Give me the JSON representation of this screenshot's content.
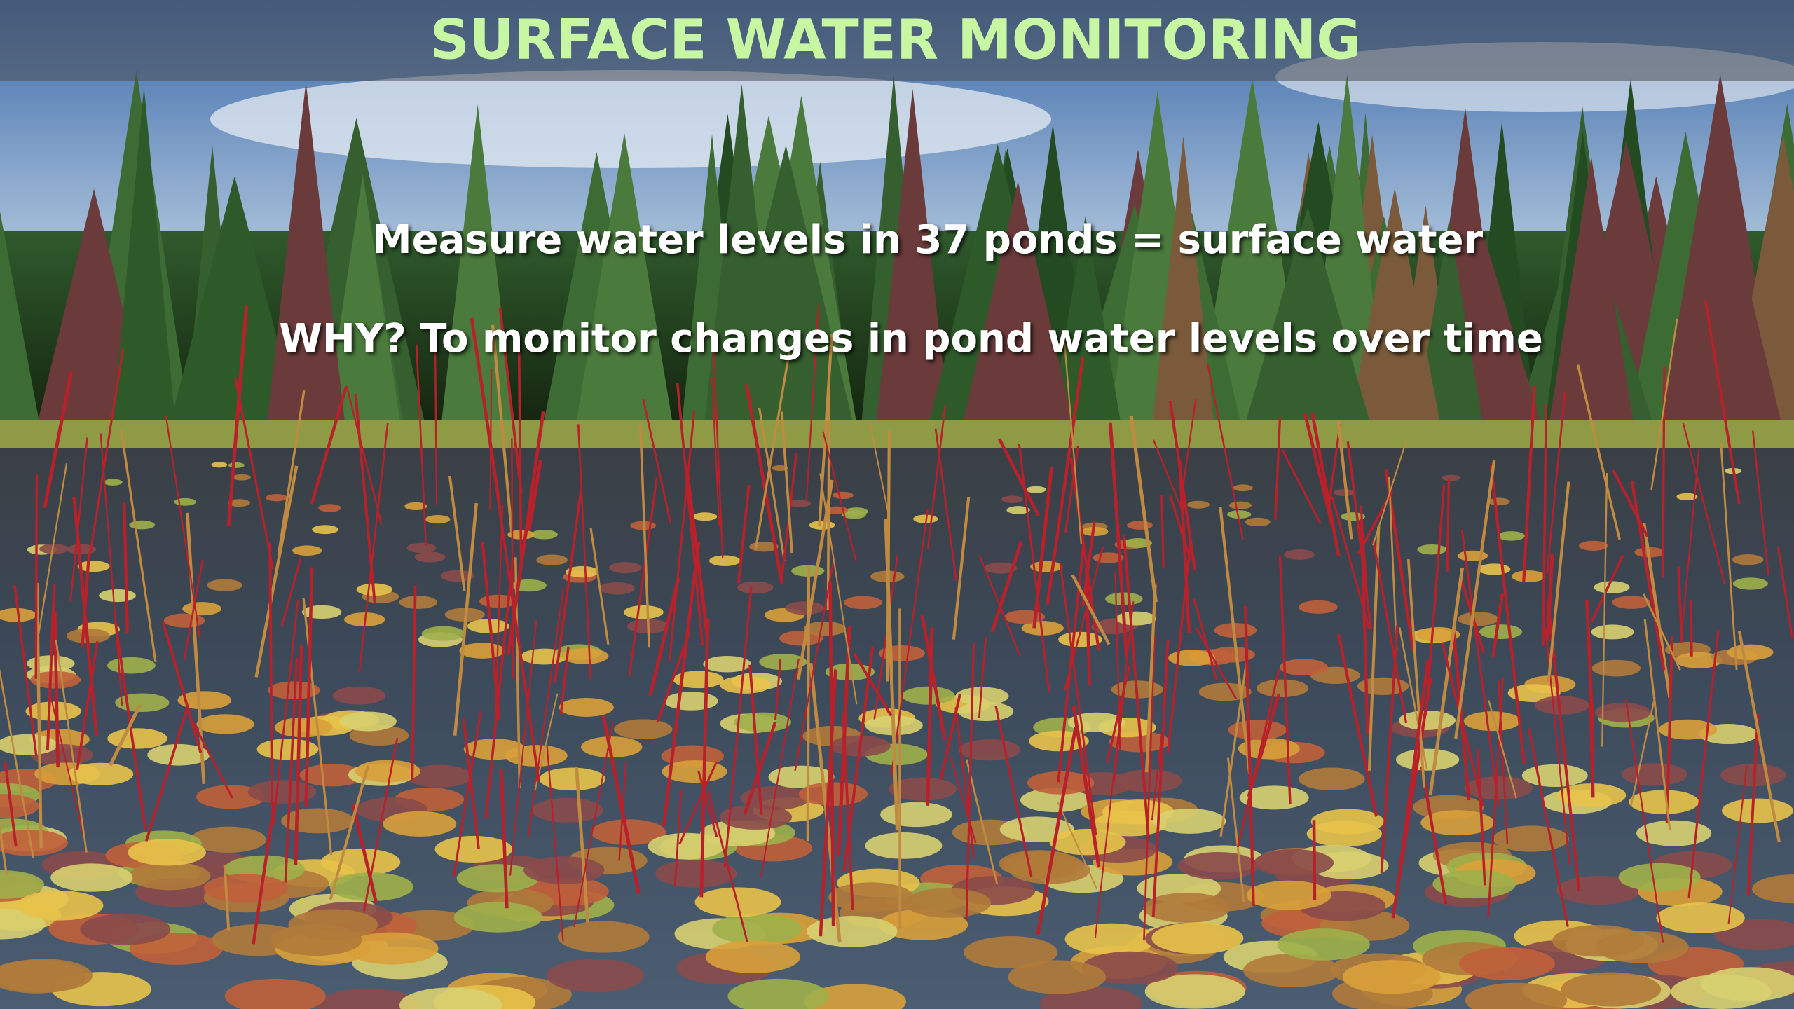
{
  "slide": {
    "title": "SURFACE WATER MONITORING",
    "lines": [
      "Measure water levels in 37 ponds = surface water",
      "WHY? To monitor changes in pond water levels over time"
    ]
  }
}
